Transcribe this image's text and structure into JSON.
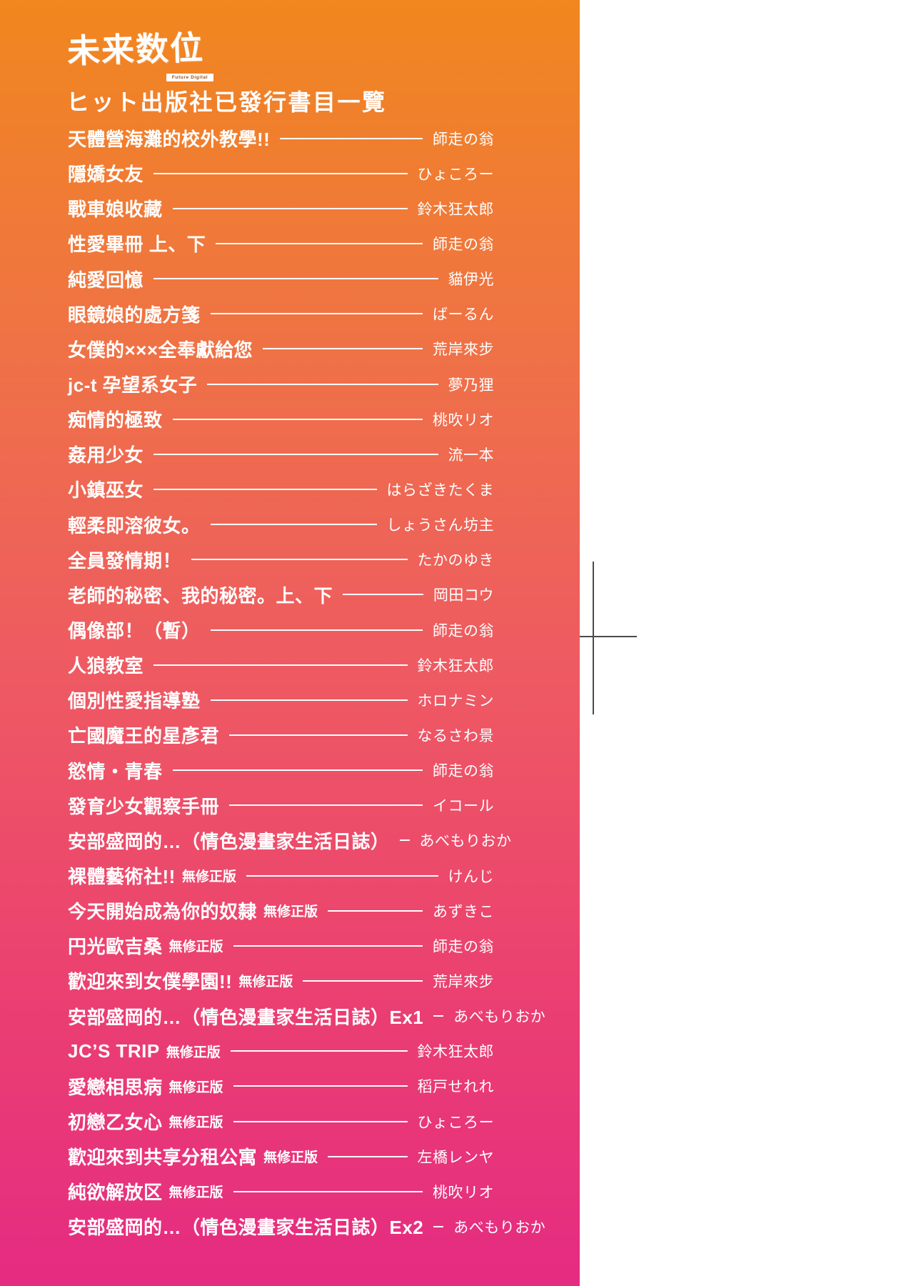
{
  "page": {
    "logo": {
      "text": "未来数位",
      "subtext": "Future Digital"
    },
    "heading": "ヒット出版社已發行書目一覽"
  },
  "colors": {
    "gradient_top": "#F1871E",
    "gradient_upper_mid": "#EF7147",
    "gradient_mid": "#EE5A62",
    "gradient_lower_mid": "#EB4170",
    "gradient_bottom": "#E52B82",
    "text": "#FFFFFF",
    "crop_mark": "#4A4A4A",
    "margin_background": "#FFFFFF"
  },
  "books": [
    {
      "title": "天體營海灘的校外教學!!",
      "badge": "",
      "author": "師走の翁"
    },
    {
      "title": "隱嬌女友",
      "badge": "",
      "author": "ひょころー"
    },
    {
      "title": "戰車娘收藏",
      "badge": "",
      "author": "鈴木狂太郎"
    },
    {
      "title": "性愛畢冊 上、下",
      "badge": "",
      "author": "師走の翁"
    },
    {
      "title": "純愛回憶",
      "badge": "",
      "author": "貓伊光"
    },
    {
      "title": "眼鏡娘的處方箋",
      "badge": "",
      "author": "ばーるん"
    },
    {
      "title": "女僕的×××全奉獻給您",
      "badge": "",
      "author": "荒岸來步"
    },
    {
      "title": "jc-t 孕望系女子",
      "badge": "",
      "author": "夢乃狸"
    },
    {
      "title": "痴情的極致",
      "badge": "",
      "author": "桃吹リオ"
    },
    {
      "title": "姦用少女",
      "badge": "",
      "author": "流一本"
    },
    {
      "title": "小鎮巫女",
      "badge": "",
      "author": "はらざきたくま"
    },
    {
      "title": "輕柔即溶彼女。",
      "badge": "",
      "author": "しょうさん坊主"
    },
    {
      "title": "全員發情期！",
      "badge": "",
      "author": "たかのゆき"
    },
    {
      "title": "老師的秘密、我的秘密。上、下",
      "badge": "",
      "author": "岡田コウ"
    },
    {
      "title": "偶像部！（暫）",
      "badge": "",
      "author": "師走の翁"
    },
    {
      "title": "人狼教室",
      "badge": "",
      "author": "鈴木狂太郎"
    },
    {
      "title": "個別性愛指導塾",
      "badge": "",
      "author": "ホロナミン"
    },
    {
      "title": "亡國魔王的星彥君",
      "badge": "",
      "author": "なるさわ景"
    },
    {
      "title": "慾情・青春",
      "badge": "",
      "author": "師走の翁"
    },
    {
      "title": "發育少女觀察手冊",
      "badge": "",
      "author": "イコール"
    },
    {
      "title": "安部盛岡的…（情色漫畫家生活日誌）",
      "badge": "",
      "author": "あべもりおか"
    },
    {
      "title": "裸體藝術社!!",
      "badge": "無修正版",
      "author": "けんじ"
    },
    {
      "title": "今天開始成為你的奴隸",
      "badge": "無修正版",
      "author": "あずきこ"
    },
    {
      "title": "円光歐吉桑",
      "badge": "無修正版",
      "author": "師走の翁"
    },
    {
      "title": "歡迎來到女僕學園!!",
      "badge": "無修正版",
      "author": "荒岸來步"
    },
    {
      "title": "安部盛岡的…（情色漫畫家生活日誌）Ex1",
      "badge": "",
      "author": "あべもりおか"
    },
    {
      "title": "JC’S TRIP",
      "badge": "無修正版",
      "author": "鈴木狂太郎"
    },
    {
      "title": "愛戀相思病",
      "badge": "無修正版",
      "author": "稻戸せれれ"
    },
    {
      "title": "初戀乙女心",
      "badge": "無修正版",
      "author": "ひょころー"
    },
    {
      "title": "歡迎來到共享分租公寓",
      "badge": "無修正版",
      "author": "左橋レンヤ"
    },
    {
      "title": "純欲解放区",
      "badge": "無修正版",
      "author": "桃吹リオ"
    },
    {
      "title": "安部盛岡的…（情色漫畫家生活日誌）Ex2",
      "badge": "",
      "author": "あべもりおか"
    }
  ]
}
